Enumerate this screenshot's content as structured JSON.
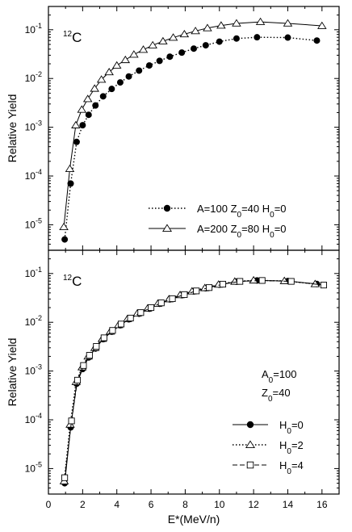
{
  "chart_data": [
    {
      "type": "line",
      "panel": "top",
      "annotation": {
        "mass": "12",
        "element": "C"
      },
      "ylabel": "Relative Yield",
      "yscale": "log",
      "ylim": [
        3e-06,
        0.3
      ],
      "xlim": [
        0,
        17
      ],
      "yticks": [
        {
          "base": "10",
          "exp": "-5",
          "value": 1e-05
        },
        {
          "base": "10",
          "exp": "-4",
          "value": 0.0001
        },
        {
          "base": "10",
          "exp": "-3",
          "value": 0.001
        },
        {
          "base": "10",
          "exp": "-2",
          "value": 0.01
        },
        {
          "base": "10",
          "exp": "-1",
          "value": 0.1
        }
      ],
      "legend_position": "bottom-right",
      "series": [
        {
          "legend": [
            {
              "t": "A",
              "s": "0"
            },
            {
              "t": "=100 Z",
              "s": ""
            },
            {
              "t": "0",
              "s": "sub"
            },
            {
              "t": "=40 H",
              "s": ""
            },
            {
              "t": "0",
              "s": "sub"
            },
            {
              "t": "=0",
              "s": ""
            }
          ],
          "marker": "filled-circle",
          "dash": "dotted",
          "x": [
            0.95,
            1.3,
            1.65,
            2.0,
            2.35,
            2.75,
            3.2,
            3.7,
            4.2,
            4.7,
            5.3,
            5.9,
            6.5,
            7.1,
            7.8,
            8.5,
            9.2,
            10.0,
            11.0,
            12.2,
            14.0,
            15.7
          ],
          "y": [
            5e-06,
            7e-05,
            0.0005,
            0.0011,
            0.0018,
            0.0028,
            0.0043,
            0.0061,
            0.0083,
            0.011,
            0.0145,
            0.0185,
            0.023,
            0.028,
            0.034,
            0.041,
            0.048,
            0.057,
            0.066,
            0.07,
            0.069,
            0.06
          ]
        },
        {
          "legend": [
            {
              "t": "A",
              "s": "0"
            },
            {
              "t": "=200 Z",
              "s": ""
            },
            {
              "t": "0",
              "s": "sub"
            },
            {
              "t": "=80 H",
              "s": ""
            },
            {
              "t": "0",
              "s": "sub"
            },
            {
              "t": "=0",
              "s": ""
            }
          ],
          "marker": "open-triangle",
          "dash": "solid",
          "x": [
            0.9,
            1.25,
            1.6,
            1.95,
            2.3,
            2.7,
            3.1,
            3.55,
            4.0,
            4.5,
            5.0,
            5.55,
            6.1,
            6.7,
            7.3,
            7.95,
            8.6,
            9.3,
            10.1,
            11.0,
            12.4,
            14.0,
            16.0
          ],
          "y": [
            9e-06,
            0.00014,
            0.0011,
            0.0023,
            0.0038,
            0.0062,
            0.0095,
            0.0135,
            0.0185,
            0.024,
            0.031,
            0.039,
            0.048,
            0.058,
            0.069,
            0.081,
            0.094,
            0.108,
            0.122,
            0.135,
            0.145,
            0.135,
            0.12
          ]
        }
      ]
    },
    {
      "type": "line",
      "panel": "bottom",
      "annotation": {
        "mass": "12",
        "element": "C"
      },
      "params": [
        [
          {
            "t": "A",
            "s": ""
          },
          {
            "t": "0",
            "s": "sub"
          },
          {
            "t": "=100",
            "s": ""
          }
        ],
        [
          {
            "t": "Z",
            "s": ""
          },
          {
            "t": "0",
            "s": "sub"
          },
          {
            "t": "=40",
            "s": ""
          }
        ]
      ],
      "xlabel": "E*(MeV/n)",
      "ylabel": "Relative Yield",
      "yscale": "log",
      "ylim": [
        3e-06,
        0.3
      ],
      "xlim": [
        0,
        17
      ],
      "xticks": [
        "0",
        "2",
        "4",
        "6",
        "8",
        "10",
        "12",
        "14",
        "16"
      ],
      "yticks": [
        {
          "base": "10",
          "exp": "-5",
          "value": 1e-05
        },
        {
          "base": "10",
          "exp": "-4",
          "value": 0.0001
        },
        {
          "base": "10",
          "exp": "-3",
          "value": 0.001
        },
        {
          "base": "10",
          "exp": "-2",
          "value": 0.01
        },
        {
          "base": "10",
          "exp": "-1",
          "value": 0.1
        }
      ],
      "legend_position": "bottom-right",
      "series": [
        {
          "legend": [
            {
              "t": "H",
              "s": ""
            },
            {
              "t": "0",
              "s": "sub"
            },
            {
              "t": "=0",
              "s": ""
            }
          ],
          "marker": "filled-circle",
          "dash": "solid",
          "x": [
            0.95,
            1.3,
            1.65,
            2.0,
            2.35,
            2.75,
            3.2,
            3.7,
            4.2,
            4.7,
            5.3,
            5.9,
            6.5,
            7.1,
            7.8,
            8.5,
            9.2,
            10.0,
            11.0,
            12.2,
            14.0,
            15.7
          ],
          "y": [
            5e-06,
            7e-05,
            0.00055,
            0.0011,
            0.0019,
            0.0029,
            0.0045,
            0.0064,
            0.0087,
            0.0115,
            0.015,
            0.019,
            0.024,
            0.0295,
            0.036,
            0.043,
            0.05,
            0.059,
            0.068,
            0.072,
            0.07,
            0.061
          ]
        },
        {
          "legend": [
            {
              "t": "H",
              "s": ""
            },
            {
              "t": "0",
              "s": "sub"
            },
            {
              "t": "=2",
              "s": ""
            }
          ],
          "marker": "open-triangle",
          "dash": "dotted",
          "x": [
            0.92,
            1.27,
            1.62,
            1.97,
            2.32,
            2.72,
            3.15,
            3.62,
            4.1,
            4.62,
            5.2,
            5.8,
            6.4,
            7.05,
            7.7,
            8.4,
            9.15,
            9.95,
            10.9,
            12.0,
            13.8,
            15.6
          ],
          "y": [
            5.5e-06,
            8e-05,
            0.0006,
            0.0012,
            0.002,
            0.003,
            0.0046,
            0.0065,
            0.0088,
            0.0117,
            0.0152,
            0.0192,
            0.0242,
            0.0298,
            0.0362,
            0.0432,
            0.0505,
            0.0595,
            0.0685,
            0.0725,
            0.0705,
            0.061
          ]
        },
        {
          "legend": [
            {
              "t": "H",
              "s": ""
            },
            {
              "t": "0",
              "s": "sub"
            },
            {
              "t": "=4",
              "s": ""
            }
          ],
          "marker": "open-square",
          "dash": "dashed",
          "x": [
            0.95,
            1.35,
            1.7,
            2.05,
            2.4,
            2.8,
            3.25,
            3.75,
            4.25,
            4.8,
            5.4,
            6.0,
            6.6,
            7.25,
            7.95,
            8.65,
            9.4,
            10.2,
            11.2,
            12.5,
            14.2,
            16.1
          ],
          "y": [
            6.5e-06,
            9.5e-05,
            0.00065,
            0.0013,
            0.0021,
            0.0032,
            0.0048,
            0.0068,
            0.0092,
            0.0122,
            0.0158,
            0.02,
            0.025,
            0.0305,
            0.037,
            0.044,
            0.0515,
            0.0605,
            0.069,
            0.072,
            0.069,
            0.058
          ]
        }
      ]
    }
  ]
}
